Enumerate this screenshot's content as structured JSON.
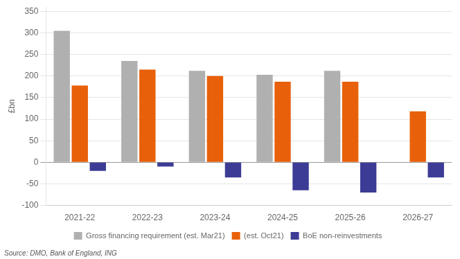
{
  "chart_data": {
    "type": "bar",
    "categories": [
      "2021-22",
      "2022-23",
      "2023-24",
      "2024-25",
      "2025-26",
      "2026-27"
    ],
    "series": [
      {
        "name": "Gross financing requirement (est. Mar21)",
        "color": "#b0b0b0",
        "values": [
          305,
          235,
          212,
          203,
          212,
          0
        ]
      },
      {
        "name": "(est. Oct21)",
        "color": "#e8600a",
        "values": [
          178,
          215,
          200,
          187,
          187,
          118
        ]
      },
      {
        "name": "BoE non-reinvestments",
        "color": "#3c3c96",
        "values": [
          -20,
          -10,
          -35,
          -65,
          -70,
          -35
        ]
      }
    ],
    "ylabel": "£bn",
    "source": "Source: DMO, Bank of England, ING",
    "ylim": [
      -100,
      360
    ],
    "yticks": [
      -100,
      -50,
      0,
      50,
      100,
      150,
      200,
      250,
      300,
      350
    ],
    "grid": true,
    "legend": "bottom"
  }
}
